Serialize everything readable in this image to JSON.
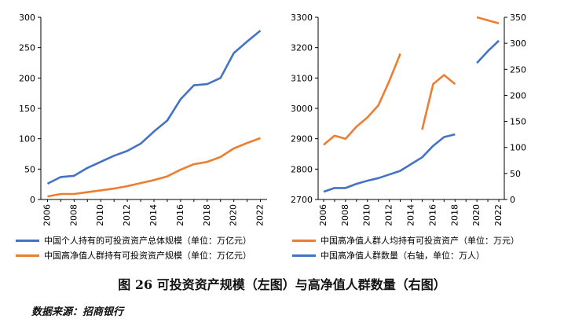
{
  "chart_data": [
    {
      "type": "line",
      "x": [
        2006,
        2007,
        2008,
        2009,
        2010,
        2011,
        2012,
        2013,
        2014,
        2015,
        2016,
        2017,
        2018,
        2019,
        2020,
        2021,
        2022
      ],
      "series": [
        {
          "name": "中国个人持有的可投资资产总体规模（单位：万亿元）",
          "color": "#4472C4",
          "values": [
            26,
            37,
            39,
            52,
            62,
            72,
            80,
            92,
            112,
            130,
            165,
            188,
            190,
            200,
            241,
            260,
            278
          ]
        },
        {
          "name": "中国高净值人群持有可投资资产规模（单位：万亿元）",
          "color": "#ED7D31",
          "values": [
            5,
            9,
            9,
            12,
            15,
            18,
            22,
            27,
            32,
            38,
            49,
            58,
            62,
            70,
            84,
            93,
            101
          ]
        }
      ],
      "ylim": [
        0,
        300
      ],
      "yticks": [
        0,
        50,
        100,
        150,
        200,
        250,
        300
      ],
      "xticks": [
        2006,
        2008,
        2010,
        2012,
        2014,
        2016,
        2018,
        2020,
        2022
      ]
    },
    {
      "type": "line",
      "x": [
        2006,
        2007,
        2008,
        2009,
        2010,
        2011,
        2012,
        2013,
        2014,
        2015,
        2016,
        2017,
        2018,
        2019,
        2020,
        2021,
        2022
      ],
      "series": [
        {
          "name": "中国高净值人群人均持有可投资资产（单位：万元）",
          "color": "#ED7D31",
          "axis": "left",
          "values": [
            2880,
            2910,
            2900,
            2940,
            2970,
            3010,
            3090,
            3180,
            null,
            2930,
            3080,
            3110,
            3080,
            null,
            3300,
            3290,
            3280
          ]
        },
        {
          "name": "中国高净值人群数量（右轴，单位：万人）",
          "color": "#4472C4",
          "axis": "right",
          "values": [
            15,
            22,
            22,
            30,
            36,
            41,
            48,
            55,
            68,
            81,
            103,
            120,
            125,
            null,
            262,
            285,
            305
          ]
        }
      ],
      "ylim_left": [
        2700,
        3300
      ],
      "yticks_left": [
        2700,
        2800,
        2900,
        3000,
        3100,
        3200,
        3300
      ],
      "ylim_right": [
        0,
        350
      ],
      "yticks_right": [
        0,
        50,
        100,
        150,
        200,
        250,
        300,
        350
      ],
      "xticks": [
        2006,
        2008,
        2010,
        2012,
        2014,
        2016,
        2018,
        2020,
        2022
      ]
    }
  ],
  "legend": {
    "l1": "中国个人持有的可投资资产总体规模（单位：万亿元）",
    "l2": "中国高净值人群持有可投资资产规模（单位：万亿元）",
    "r1": "中国高净值人群人均持有可投资资产（单位：万元）",
    "r2": "中国高净值人群数量（右轴，单位：万人）"
  },
  "caption": "图 26  可投资资产规模（左图）与高净值人群数量（右图）",
  "source": "数据来源：招商银行"
}
